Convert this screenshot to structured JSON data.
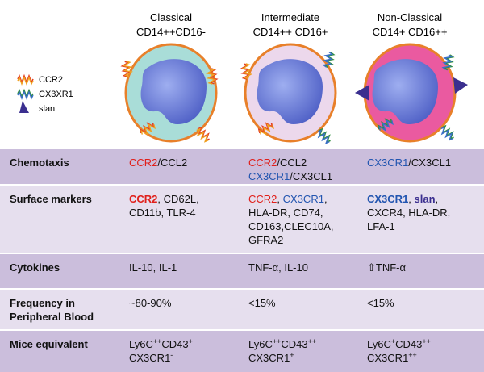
{
  "header": {
    "columns": [
      {
        "title": "Classical",
        "subtitle": "CD14++CD16-"
      },
      {
        "title": "Intermediate",
        "subtitle": "CD14++ CD16+"
      },
      {
        "title": "Non-Classical",
        "subtitle": "CD14+ CD16++"
      }
    ]
  },
  "legend": [
    "CCR2",
    "CX3XR1",
    "slan"
  ],
  "table": {
    "rows": [
      {
        "label": [
          "Chemotaxis"
        ],
        "cells": [
          [
            [
              {
                "text": "CCR2",
                "color": "#e0201b"
              },
              "/CCL2"
            ]
          ],
          [
            [
              {
                "text": "CCR2",
                "color": "#e0201b"
              },
              "/CCL2"
            ],
            [
              {
                "text": "CX3CR1",
                "color": "#2255b0"
              },
              "/CX3CL1"
            ]
          ],
          [
            [
              {
                "text": "CX3CR1",
                "color": "#2255b0"
              },
              "/CX3CL1"
            ]
          ]
        ]
      },
      {
        "label": [
          "Surface markers"
        ],
        "cells": [
          [
            [
              {
                "text": "CCR2",
                "color": "#e0201b",
                "bold": true
              },
              ", CD62L,"
            ],
            [
              "CD11b, TLR-4"
            ]
          ],
          [
            [
              {
                "text": "CCR2",
                "color": "#e0201b"
              },
              ", ",
              {
                "text": "CX3CR1",
                "color": "#2255b0"
              },
              ","
            ],
            [
              "HLA-DR, CD74,"
            ],
            [
              "CD163,CLEC10A,"
            ],
            [
              "GFRA2"
            ]
          ],
          [
            [
              {
                "text": "CX3CR1",
                "color": "#2255b0",
                "bold": true
              },
              ", ",
              {
                "text": "slan",
                "color": "#3b2f8f",
                "bold": true
              },
              ","
            ],
            [
              "CXCR4, HLA-DR,"
            ],
            [
              "LFA-1"
            ]
          ]
        ]
      },
      {
        "label": [
          "Cytokines"
        ],
        "cells": [
          [
            [
              "IL-10, IL-1"
            ]
          ],
          [
            [
              "TNF-α, IL-10"
            ]
          ],
          [
            [
              "⇧TNF-α"
            ]
          ]
        ]
      },
      {
        "label": [
          "Frequency in",
          "Peripheral Blood"
        ],
        "cells": [
          [
            [
              "~80-90%"
            ]
          ],
          [
            [
              "<15%"
            ]
          ],
          [
            [
              "<15%"
            ]
          ]
        ]
      },
      {
        "label": [
          "Mice equivalent"
        ],
        "cells": [
          [
            [
              "Ly6C",
              {
                "text": "++",
                "sup": true
              },
              "CD43",
              {
                "text": "+",
                "sup": true
              }
            ],
            [
              "CX3CR1",
              {
                "text": "-",
                "sup": true
              }
            ]
          ],
          [
            [
              "Ly6C",
              {
                "text": "++",
                "sup": true
              },
              "CD43",
              {
                "text": "++",
                "sup": true
              }
            ],
            [
              "CX3CR1",
              {
                "text": "+",
                "sup": true
              }
            ]
          ],
          [
            [
              "Ly6C",
              {
                "text": "+",
                "sup": true
              },
              "CD43",
              {
                "text": "++",
                "sup": true
              }
            ],
            [
              "CX3CR1",
              {
                "text": "++",
                "sup": true
              }
            ]
          ]
        ]
      }
    ]
  }
}
